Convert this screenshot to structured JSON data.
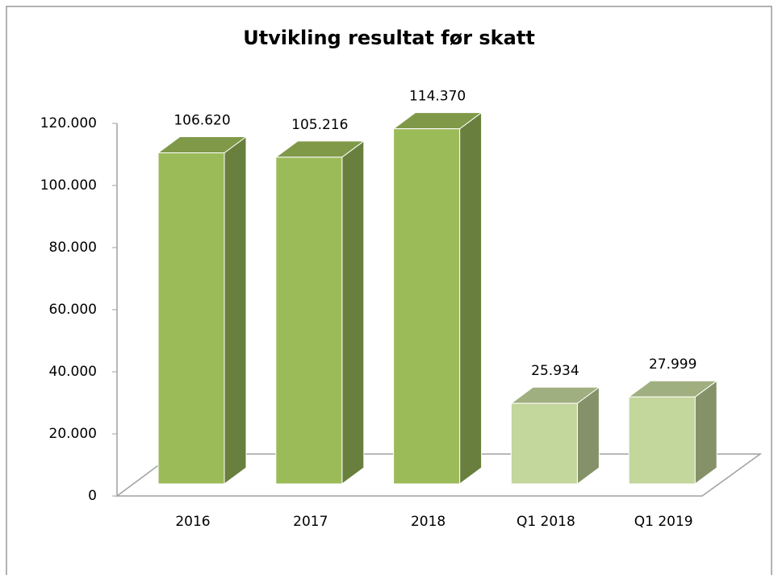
{
  "chart_data": {
    "type": "bar3d",
    "title": "Utvikling resultat før skatt",
    "categories": [
      "2016",
      "2017",
      "2018",
      "Q1 2018",
      "Q1 2019"
    ],
    "values": [
      106620,
      105216,
      114370,
      25934,
      27999
    ],
    "value_labels": [
      "106.620",
      "105.216",
      "114.370",
      "25.934",
      "27.999"
    ],
    "colors": [
      "#9bbb59",
      "#9bbb59",
      "#9bbb59",
      "#c3d69b",
      "#c3d69b"
    ],
    "ylim": [
      0,
      120000
    ],
    "yticks": [
      0,
      {
        "value": 20000,
        "label": "20.000"
      },
      {
        "value": 40000,
        "label": "40.000"
      },
      {
        "value": 60000,
        "label": "60.000"
      },
      {
        "value": 80000,
        "label": "80.000"
      },
      {
        "value": 100000,
        "label": "100.000"
      },
      {
        "value": 120000,
        "label": "120.000"
      }
    ]
  }
}
